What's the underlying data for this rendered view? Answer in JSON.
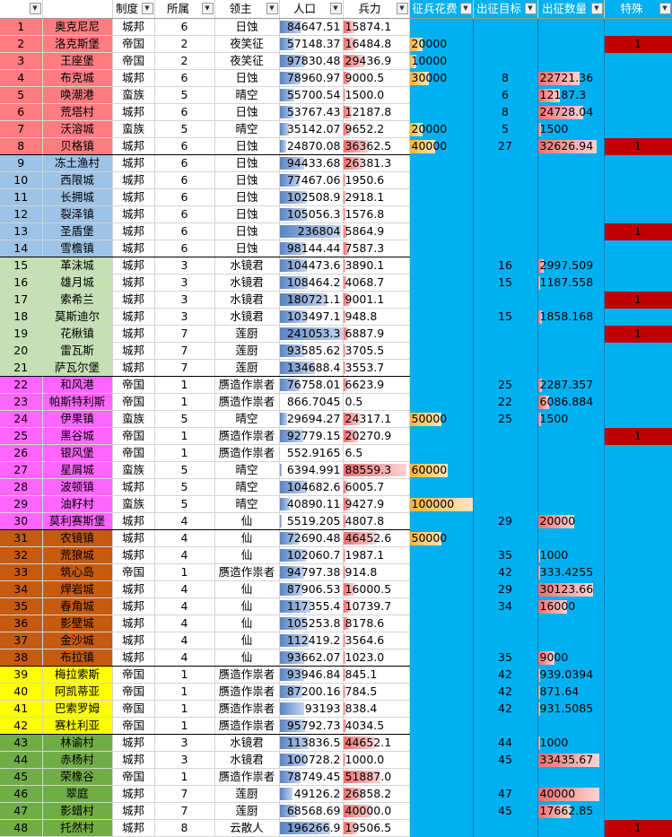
{
  "headers": [
    "",
    "制度",
    "所属",
    "领主",
    "人口",
    "兵力",
    "征兵花费",
    "出征目标",
    "出征数量",
    "特殊"
  ],
  "colors": {
    "red": "#ff7c80",
    "blue": "#9dc3e6",
    "green": "#c5e0b4",
    "magenta": "#ff66ff",
    "rust": "#c55a11",
    "yellow": "#ffff00",
    "olive": "#70ad47",
    "cyan": "#00b0f0",
    "special": "#c00000"
  },
  "rows": [
    {
      "n": "1",
      "name": "奥克尼尼",
      "sys": "城邦",
      "own": "6",
      "lord": "日蚀",
      "pop": "84647.51",
      "popf": 0.35,
      "troop": "15874.1",
      "tf": 0.18,
      "cost": "",
      "cf": 0,
      "tgt": "",
      "num": "",
      "nf": 0,
      "sp": "",
      "g": "red"
    },
    {
      "n": "2",
      "name": "洛克斯堡",
      "sys": "帝国",
      "own": "2",
      "lord": "夜笑征",
      "pop": "57148.37",
      "popf": 0.24,
      "troop": "16484.8",
      "tf": 0.19,
      "cost": "20000",
      "cf": 0.2,
      "tgt": "",
      "num": "",
      "nf": 0,
      "sp": "1",
      "g": "red"
    },
    {
      "n": "3",
      "name": "王座堡",
      "sys": "帝国",
      "own": "2",
      "lord": "夜笑征",
      "pop": "97830.48",
      "popf": 0.4,
      "troop": "29436.9",
      "tf": 0.33,
      "cost": "10000",
      "cf": 0.1,
      "tgt": "",
      "num": "",
      "nf": 0,
      "sp": "",
      "g": "red"
    },
    {
      "n": "4",
      "name": "布克城",
      "sys": "城邦",
      "own": "6",
      "lord": "日蚀",
      "pop": "78960.97",
      "popf": 0.33,
      "troop": "9000.5",
      "tf": 0.1,
      "cost": "30000",
      "cf": 0.3,
      "tgt": "8",
      "num": "22721.36",
      "nf": 0.68,
      "sp": "",
      "g": "red"
    },
    {
      "n": "5",
      "name": "唤潮港",
      "sys": "蛮族",
      "own": "5",
      "lord": "晴空",
      "pop": "55700.54",
      "popf": 0.23,
      "troop": "1500.0",
      "tf": 0.02,
      "cost": "",
      "cf": 0,
      "tgt": "6",
      "num": "12187.3",
      "nf": 0.36,
      "sp": "",
      "g": "red"
    },
    {
      "n": "6",
      "name": "荒塔村",
      "sys": "城邦",
      "own": "6",
      "lord": "日蚀",
      "pop": "53767.43",
      "popf": 0.22,
      "troop": "12187.8",
      "tf": 0.14,
      "cost": "",
      "cf": 0,
      "tgt": "8",
      "num": "24728.04",
      "nf": 0.74,
      "sp": "",
      "g": "red"
    },
    {
      "n": "7",
      "name": "沃溶城",
      "sys": "蛮族",
      "own": "5",
      "lord": "晴空",
      "pop": "35142.07",
      "popf": 0.15,
      "troop": "9652.2",
      "tf": 0.11,
      "cost": "20000",
      "cf": 0.2,
      "tgt": "5",
      "num": "1500",
      "nf": 0.05,
      "sp": "",
      "g": "red"
    },
    {
      "n": "8",
      "name": "贝格镇",
      "sys": "城邦",
      "own": "6",
      "lord": "日蚀",
      "pop": "24870.08",
      "popf": 0.1,
      "troop": "36362.5",
      "tf": 0.41,
      "cost": "40000",
      "cf": 0.4,
      "tgt": "27",
      "num": "32626.94",
      "nf": 0.97,
      "sp": "1",
      "g": "red",
      "sep": true
    },
    {
      "n": "9",
      "name": "冻土渔村",
      "sys": "城邦",
      "own": "6",
      "lord": "日蚀",
      "pop": "94433.68",
      "popf": 0.39,
      "troop": "26381.3",
      "tf": 0.3,
      "cost": "",
      "cf": 0,
      "tgt": "",
      "num": "",
      "nf": 0,
      "sp": "",
      "g": "blue"
    },
    {
      "n": "10",
      "name": "西限城",
      "sys": "城邦",
      "own": "6",
      "lord": "日蚀",
      "pop": "77467.06",
      "popf": 0.32,
      "troop": "1950.6",
      "tf": 0.02,
      "cost": "",
      "cf": 0,
      "tgt": "",
      "num": "",
      "nf": 0,
      "sp": "",
      "g": "blue"
    },
    {
      "n": "11",
      "name": "长拥城",
      "sys": "城邦",
      "own": "6",
      "lord": "日蚀",
      "pop": "102508.9",
      "popf": 0.43,
      "troop": "2918.1",
      "tf": 0.03,
      "cost": "",
      "cf": 0,
      "tgt": "",
      "num": "",
      "nf": 0,
      "sp": "",
      "g": "blue"
    },
    {
      "n": "12",
      "name": "裂泽镇",
      "sys": "城邦",
      "own": "6",
      "lord": "日蚀",
      "pop": "105056.3",
      "popf": 0.44,
      "troop": "1576.8",
      "tf": 0.02,
      "cost": "",
      "cf": 0,
      "tgt": "",
      "num": "",
      "nf": 0,
      "sp": "",
      "g": "blue"
    },
    {
      "n": "13",
      "name": "圣盾堡",
      "sys": "城邦",
      "own": "6",
      "lord": "日蚀",
      "pop": "236804",
      "popf": 0.98,
      "troop": "5864.9",
      "tf": 0.07,
      "cost": "",
      "cf": 0,
      "tgt": "",
      "num": "",
      "nf": 0,
      "sp": "1",
      "g": "blue"
    },
    {
      "n": "14",
      "name": "雪檐镇",
      "sys": "城邦",
      "own": "6",
      "lord": "日蚀",
      "pop": "98144.44",
      "popf": 0.41,
      "troop": "7587.3",
      "tf": 0.09,
      "cost": "",
      "cf": 0,
      "tgt": "",
      "num": "",
      "nf": 0,
      "sp": "",
      "g": "blue",
      "sep": true
    },
    {
      "n": "15",
      "name": "革沫城",
      "sys": "城邦",
      "own": "3",
      "lord": "水镜君",
      "pop": "104473.6",
      "popf": 0.43,
      "troop": "3890.1",
      "tf": 0.04,
      "cost": "",
      "cf": 0,
      "tgt": "16",
      "num": "2997.509",
      "nf": 0.09,
      "sp": "",
      "g": "green"
    },
    {
      "n": "16",
      "name": "雄月城",
      "sys": "城邦",
      "own": "3",
      "lord": "水镜君",
      "pop": "108464.2",
      "popf": 0.45,
      "troop": "4068.7",
      "tf": 0.05,
      "cost": "",
      "cf": 0,
      "tgt": "15",
      "num": "1187.558",
      "nf": 0.04,
      "sp": "",
      "g": "green"
    },
    {
      "n": "17",
      "name": "索希兰",
      "sys": "城邦",
      "own": "3",
      "lord": "水镜君",
      "pop": "180721.1",
      "popf": 0.75,
      "troop": "9001.1",
      "tf": 0.1,
      "cost": "",
      "cf": 0,
      "tgt": "",
      "num": "",
      "nf": 0,
      "sp": "1",
      "g": "green"
    },
    {
      "n": "18",
      "name": "莫斯迪尔",
      "sys": "城邦",
      "own": "3",
      "lord": "水镜君",
      "pop": "103497.1",
      "popf": 0.43,
      "troop": "948.8",
      "tf": 0.01,
      "cost": "",
      "cf": 0,
      "tgt": "15",
      "num": "1858.168",
      "nf": 0.06,
      "sp": "",
      "g": "green"
    },
    {
      "n": "19",
      "name": "花楸镇",
      "sys": "城邦",
      "own": "7",
      "lord": "莲厨",
      "pop": "241053.3",
      "popf": 1.0,
      "troop": "6887.9",
      "tf": 0.08,
      "cost": "",
      "cf": 0,
      "tgt": "",
      "num": "",
      "nf": 0,
      "sp": "1",
      "g": "green"
    },
    {
      "n": "20",
      "name": "雷瓦斯",
      "sys": "城邦",
      "own": "7",
      "lord": "莲厨",
      "pop": "93585.62",
      "popf": 0.39,
      "troop": "3705.5",
      "tf": 0.04,
      "cost": "",
      "cf": 0,
      "tgt": "",
      "num": "",
      "nf": 0,
      "sp": "",
      "g": "green"
    },
    {
      "n": "21",
      "name": "萨瓦尔堡",
      "sys": "城邦",
      "own": "7",
      "lord": "莲厨",
      "pop": "134688.4",
      "popf": 0.56,
      "troop": "3553.7",
      "tf": 0.04,
      "cost": "",
      "cf": 0,
      "tgt": "",
      "num": "",
      "nf": 0,
      "sp": "",
      "g": "green",
      "sep": true
    },
    {
      "n": "22",
      "name": "和风港",
      "sys": "帝国",
      "own": "1",
      "lord": "赝造作祟者",
      "pop": "76758.01",
      "popf": 0.32,
      "troop": "6623.9",
      "tf": 0.07,
      "cost": "",
      "cf": 0,
      "tgt": "25",
      "num": "2287.357",
      "nf": 0.07,
      "sp": "",
      "g": "magenta"
    },
    {
      "n": "23",
      "name": "帕斯特利斯",
      "sys": "帝国",
      "own": "1",
      "lord": "赝造作祟者",
      "pop": "866.7045",
      "popf": 0.0,
      "troop": "0.5",
      "tf": 0.0,
      "cost": "",
      "cf": 0,
      "tgt": "22",
      "num": "6086.884",
      "nf": 0.18,
      "sp": "",
      "g": "magenta"
    },
    {
      "n": "24",
      "name": "伊果镇",
      "sys": "蛮族",
      "own": "5",
      "lord": "晴空",
      "pop": "29694.27",
      "popf": 0.12,
      "troop": "24317.1",
      "tf": 0.27,
      "cost": "50000",
      "cf": 0.5,
      "tgt": "25",
      "num": "1500",
      "nf": 0.05,
      "sp": "",
      "g": "magenta"
    },
    {
      "n": "25",
      "name": "黑谷城",
      "sys": "帝国",
      "own": "1",
      "lord": "赝造作祟者",
      "pop": "92779.15",
      "popf": 0.38,
      "troop": "20270.9",
      "tf": 0.23,
      "cost": "",
      "cf": 0,
      "tgt": "",
      "num": "",
      "nf": 0,
      "sp": "1",
      "g": "magenta"
    },
    {
      "n": "26",
      "name": "银风堡",
      "sys": "帝国",
      "own": "1",
      "lord": "赝造作祟者",
      "pop": "552.9165",
      "popf": 0.0,
      "troop": "6.5",
      "tf": 0.0,
      "cost": "",
      "cf": 0,
      "tgt": "",
      "num": "",
      "nf": 0,
      "sp": "",
      "g": "magenta"
    },
    {
      "n": "27",
      "name": "星屑城",
      "sys": "蛮族",
      "own": "5",
      "lord": "晴空",
      "pop": "6394.991",
      "popf": 0.03,
      "troop": "88559.3",
      "tf": 1.0,
      "cost": "60000",
      "cf": 0.6,
      "tgt": "",
      "num": "",
      "nf": 0,
      "sp": "",
      "g": "magenta"
    },
    {
      "n": "28",
      "name": "波顿镇",
      "sys": "城邦",
      "own": "5",
      "lord": "晴空",
      "pop": "104682.6",
      "popf": 0.43,
      "troop": "6005.7",
      "tf": 0.07,
      "cost": "",
      "cf": 0,
      "tgt": "",
      "num": "",
      "nf": 0,
      "sp": "",
      "g": "magenta"
    },
    {
      "n": "29",
      "name": "油籽村",
      "sys": "蛮族",
      "own": "5",
      "lord": "晴空",
      "pop": "40890.11",
      "popf": 0.17,
      "troop": "9427.9",
      "tf": 0.11,
      "cost": "100000",
      "cf": 1.0,
      "tgt": "",
      "num": "",
      "nf": 0,
      "sp": "",
      "g": "magenta"
    },
    {
      "n": "30",
      "name": "莫利赛斯堡",
      "sys": "城邦",
      "own": "4",
      "lord": "仙",
      "pop": "5519.205",
      "popf": 0.02,
      "troop": "4807.8",
      "tf": 0.05,
      "cost": "",
      "cf": 0,
      "tgt": "29",
      "num": "20000",
      "nf": 0.6,
      "sp": "",
      "g": "magenta",
      "sep": true
    },
    {
      "n": "31",
      "name": "农镜镇",
      "sys": "城邦",
      "own": "4",
      "lord": "仙",
      "pop": "72690.48",
      "popf": 0.3,
      "troop": "46452.6",
      "tf": 0.52,
      "cost": "50000",
      "cf": 0.5,
      "tgt": "",
      "num": "",
      "nf": 0,
      "sp": "",
      "g": "rust"
    },
    {
      "n": "32",
      "name": "荒狼城",
      "sys": "城邦",
      "own": "4",
      "lord": "仙",
      "pop": "102060.7",
      "popf": 0.42,
      "troop": "1987.1",
      "tf": 0.02,
      "cost": "",
      "cf": 0,
      "tgt": "35",
      "num": "1000",
      "nf": 0.03,
      "sp": "",
      "g": "rust"
    },
    {
      "n": "33",
      "name": "筑心岛",
      "sys": "帝国",
      "own": "1",
      "lord": "赝造作祟者",
      "pop": "94797.38",
      "popf": 0.39,
      "troop": "914.8",
      "tf": 0.01,
      "cost": "",
      "cf": 0,
      "tgt": "42",
      "num": "333.4255",
      "nf": 0.01,
      "sp": "",
      "g": "rust"
    },
    {
      "n": "34",
      "name": "焊岩城",
      "sys": "城邦",
      "own": "4",
      "lord": "仙",
      "pop": "87906.53",
      "popf": 0.36,
      "troop": "16000.5",
      "tf": 0.18,
      "cost": "",
      "cf": 0,
      "tgt": "29",
      "num": "30123.66",
      "nf": 0.9,
      "sp": "",
      "g": "rust"
    },
    {
      "n": "35",
      "name": "春角城",
      "sys": "城邦",
      "own": "4",
      "lord": "仙",
      "pop": "117355.4",
      "popf": 0.49,
      "troop": "10739.7",
      "tf": 0.12,
      "cost": "",
      "cf": 0,
      "tgt": "34",
      "num": "16000",
      "nf": 0.48,
      "sp": "",
      "g": "rust"
    },
    {
      "n": "36",
      "name": "影壁城",
      "sys": "城邦",
      "own": "4",
      "lord": "仙",
      "pop": "105253.8",
      "popf": 0.44,
      "troop": "8178.6",
      "tf": 0.09,
      "cost": "",
      "cf": 0,
      "tgt": "",
      "num": "",
      "nf": 0,
      "sp": "",
      "g": "rust"
    },
    {
      "n": "37",
      "name": "金沙城",
      "sys": "城邦",
      "own": "4",
      "lord": "仙",
      "pop": "112419.2",
      "popf": 0.47,
      "troop": "3564.6",
      "tf": 0.04,
      "cost": "",
      "cf": 0,
      "tgt": "",
      "num": "",
      "nf": 0,
      "sp": "",
      "g": "rust"
    },
    {
      "n": "38",
      "name": "布拉镇",
      "sys": "城邦",
      "own": "4",
      "lord": "仙",
      "pop": "93662.07",
      "popf": 0.39,
      "troop": "1023.0",
      "tf": 0.01,
      "cost": "",
      "cf": 0,
      "tgt": "35",
      "num": "9000",
      "nf": 0.27,
      "sp": "",
      "g": "rust",
      "sep": true
    },
    {
      "n": "39",
      "name": "梅拉索斯",
      "sys": "帝国",
      "own": "1",
      "lord": "赝造作祟者",
      "pop": "93946.84",
      "popf": 0.39,
      "troop": "845.1",
      "tf": 0.01,
      "cost": "",
      "cf": 0,
      "tgt": "42",
      "num": "939.0394",
      "nf": 0.03,
      "sp": "",
      "g": "yellow"
    },
    {
      "n": "40",
      "name": "阿凯蒂亚",
      "sys": "帝国",
      "own": "1",
      "lord": "赝造作祟者",
      "pop": "87200.16",
      "popf": 0.36,
      "troop": "784.5",
      "tf": 0.01,
      "cost": "",
      "cf": 0,
      "tgt": "42",
      "num": "871.64",
      "nf": 0.03,
      "sp": "",
      "g": "yellow"
    },
    {
      "n": "41",
      "name": "巴索罗姆",
      "sys": "帝国",
      "own": "1",
      "lord": "赝造作祟者",
      "pop": "93193",
      "popf": 0.39,
      "troop": "838.4",
      "tf": 0.01,
      "cost": "",
      "cf": 0,
      "tgt": "42",
      "num": "931.5085",
      "nf": 0.03,
      "sp": "",
      "g": "yellow"
    },
    {
      "n": "42",
      "name": "赛杜利亚",
      "sys": "帝国",
      "own": "1",
      "lord": "赝造作祟者",
      "pop": "95792.73",
      "popf": 0.4,
      "troop": "4034.5",
      "tf": 0.05,
      "cost": "",
      "cf": 0,
      "tgt": "",
      "num": "",
      "nf": 0,
      "sp": "",
      "g": "yellow",
      "sep": true
    },
    {
      "n": "43",
      "name": "林谕村",
      "sys": "城邦",
      "own": "3",
      "lord": "水镜君",
      "pop": "113836.5",
      "popf": 0.47,
      "troop": "44652.1",
      "tf": 0.5,
      "cost": "",
      "cf": 0,
      "tgt": "44",
      "num": "1000",
      "nf": 0.03,
      "sp": "",
      "g": "olive"
    },
    {
      "n": "44",
      "name": "赤杨村",
      "sys": "城邦",
      "own": "3",
      "lord": "水镜君",
      "pop": "100728.2",
      "popf": 0.42,
      "troop": "1000.0",
      "tf": 0.01,
      "cost": "",
      "cf": 0,
      "tgt": "45",
      "num": "33435.67",
      "nf": 1.0,
      "sp": "",
      "g": "olive"
    },
    {
      "n": "45",
      "name": "荣橡谷",
      "sys": "帝国",
      "own": "1",
      "lord": "赝造作祟者",
      "pop": "78749.45",
      "popf": 0.33,
      "troop": "51887.0",
      "tf": 0.59,
      "cost": "",
      "cf": 0,
      "tgt": "",
      "num": "",
      "nf": 0,
      "sp": "",
      "g": "olive"
    },
    {
      "n": "46",
      "name": "翠庭",
      "sys": "城邦",
      "own": "7",
      "lord": "莲厨",
      "pop": "49126.2",
      "popf": 0.2,
      "troop": "26858.2",
      "tf": 0.3,
      "cost": "",
      "cf": 0,
      "tgt": "47",
      "num": "40000",
      "nf": 1.0,
      "sp": "",
      "g": "olive"
    },
    {
      "n": "47",
      "name": "影蜡村",
      "sys": "城邦",
      "own": "7",
      "lord": "莲厨",
      "pop": "68568.69",
      "popf": 0.28,
      "troop": "40000.0",
      "tf": 0.45,
      "cost": "",
      "cf": 0,
      "tgt": "45",
      "num": "17662.85",
      "nf": 0.53,
      "sp": "",
      "g": "olive"
    },
    {
      "n": "48",
      "name": "托然村",
      "sys": "城邦",
      "own": "8",
      "lord": "云散人",
      "pop": "196266.9",
      "popf": 0.81,
      "troop": "19506.5",
      "tf": 0.22,
      "cost": "",
      "cf": 0,
      "tgt": "",
      "num": "",
      "nf": 0,
      "sp": "1",
      "g": "olive"
    }
  ]
}
